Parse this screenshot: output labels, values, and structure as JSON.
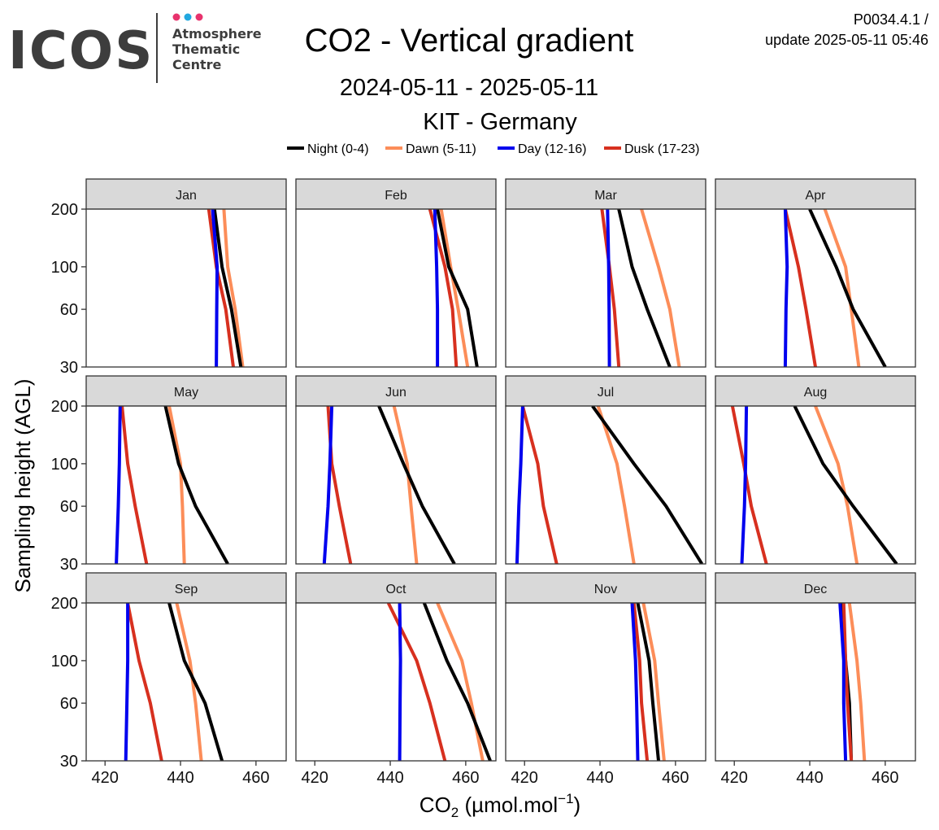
{
  "logo": {
    "wordmark": "ICOS",
    "line1": "Atmosphere",
    "line2": "Thematic",
    "line3": "Centre",
    "dot_colors": [
      "#e8336d",
      "#22a8e0",
      "#e8336d"
    ]
  },
  "header": {
    "product_code": "P0034.4.1 /",
    "update_label": "update  2025-05-11 05:46"
  },
  "chart_data": {
    "type": "line",
    "title": "CO2 - Vertical gradient",
    "subtitle": "2024-05-11 - 2025-05-11",
    "station": "KIT - Germany",
    "xlabel": "CO",
    "xlabel_sub": "2",
    "xlabel_unit": " (µmol.mol",
    "xlabel_sup": "−1",
    "xlabel_close": ")",
    "ylabel": "Sampling height (AGL)",
    "xlim": [
      415,
      468
    ],
    "ylim": [
      30,
      200
    ],
    "y_scale": "log",
    "xticks": [
      "420",
      "440",
      "460"
    ],
    "yticks": [
      "30",
      "60",
      "100",
      "200"
    ],
    "legend_position": "top",
    "grid": false,
    "heights": [
      30,
      60,
      100,
      200
    ],
    "series": [
      {
        "name": "Night (0-4)",
        "color": "#000000"
      },
      {
        "name": "Dawn (5-11)",
        "color": "#fc8d59"
      },
      {
        "name": "Day (12-16)",
        "color": "#0000ee"
      },
      {
        "name": "Dusk (17-23)",
        "color": "#d7301f"
      }
    ],
    "panels": [
      {
        "month": "Jan",
        "values": [
          [
            456.0,
            453.5,
            451.0,
            449.0
          ],
          [
            456.5,
            454.5,
            452.5,
            451.5
          ],
          [
            449.5,
            449.6,
            449.7,
            448.5
          ],
          [
            454.0,
            452.0,
            449.5,
            447.5
          ]
        ]
      },
      {
        "month": "Feb",
        "values": [
          [
            463.0,
            460.5,
            455.5,
            452.5
          ],
          [
            460.5,
            458.0,
            456.0,
            453.5
          ],
          [
            452.5,
            452.5,
            452.3,
            451.8
          ],
          [
            457.5,
            456.5,
            454.5,
            450.5
          ]
        ]
      },
      {
        "month": "Mar",
        "values": [
          [
            458.5,
            452.5,
            448.5,
            445.0
          ],
          [
            461.0,
            458.5,
            455.5,
            451.0
          ],
          [
            442.5,
            442.4,
            442.3,
            442.0
          ],
          [
            445.0,
            443.8,
            442.5,
            440.5
          ]
        ]
      },
      {
        "month": "Apr",
        "values": [
          [
            460.0,
            451.5,
            447.0,
            440.0
          ],
          [
            453.0,
            451.0,
            449.5,
            444.0
          ],
          [
            433.5,
            433.7,
            434.0,
            433.5
          ],
          [
            441.5,
            439.0,
            437.0,
            433.5
          ]
        ]
      },
      {
        "month": "May",
        "values": [
          [
            452.5,
            444.0,
            439.5,
            436.0
          ],
          [
            441.0,
            440.5,
            440.0,
            437.0
          ],
          [
            423.0,
            423.5,
            423.8,
            424.0
          ],
          [
            431.0,
            428.0,
            426.0,
            424.5
          ]
        ]
      },
      {
        "month": "Jun",
        "values": [
          [
            457.0,
            448.5,
            443.5,
            437.0
          ],
          [
            447.0,
            445.5,
            444.5,
            441.0
          ],
          [
            422.5,
            423.5,
            424.0,
            424.5
          ],
          [
            429.5,
            426.5,
            424.5,
            423.5
          ]
        ]
      },
      {
        "month": "Jul",
        "values": [
          [
            467.0,
            457.5,
            449.0,
            438.0
          ],
          [
            449.0,
            446.5,
            444.5,
            439.5
          ],
          [
            418.0,
            418.5,
            419.0,
            419.5
          ],
          [
            428.5,
            425.0,
            423.5,
            419.5
          ]
        ]
      },
      {
        "month": "Aug",
        "values": [
          [
            463.0,
            451.5,
            443.5,
            436.0
          ],
          [
            452.5,
            450.0,
            447.5,
            441.5
          ],
          [
            422.0,
            422.7,
            423.0,
            423.2
          ],
          [
            428.5,
            424.5,
            422.5,
            419.5
          ]
        ]
      },
      {
        "month": "Sep",
        "values": [
          [
            451.0,
            446.5,
            441.0,
            437.0
          ],
          [
            445.5,
            444.0,
            442.5,
            439.0
          ],
          [
            425.5,
            425.8,
            426.0,
            426.0
          ],
          [
            435.0,
            432.0,
            429.0,
            426.0
          ]
        ]
      },
      {
        "month": "Oct",
        "values": [
          [
            466.5,
            460.5,
            455.0,
            449.0
          ],
          [
            464.5,
            461.5,
            459.0,
            452.5
          ],
          [
            442.5,
            442.6,
            442.7,
            442.5
          ],
          [
            454.5,
            450.5,
            447.0,
            439.5
          ]
        ]
      },
      {
        "month": "Nov",
        "values": [
          [
            455.5,
            454.0,
            453.0,
            450.0
          ],
          [
            457.0,
            455.5,
            454.5,
            451.5
          ],
          [
            450.0,
            449.7,
            449.4,
            448.5
          ],
          [
            452.5,
            451.0,
            450.5,
            449.0
          ]
        ]
      },
      {
        "month": "Dec",
        "values": [
          [
            451.0,
            450.5,
            449.5,
            448.5
          ],
          [
            454.5,
            453.5,
            452.5,
            450.5
          ],
          [
            449.5,
            449.0,
            449.0,
            448.0
          ],
          [
            451.0,
            450.0,
            449.5,
            449.0
          ]
        ]
      }
    ]
  }
}
